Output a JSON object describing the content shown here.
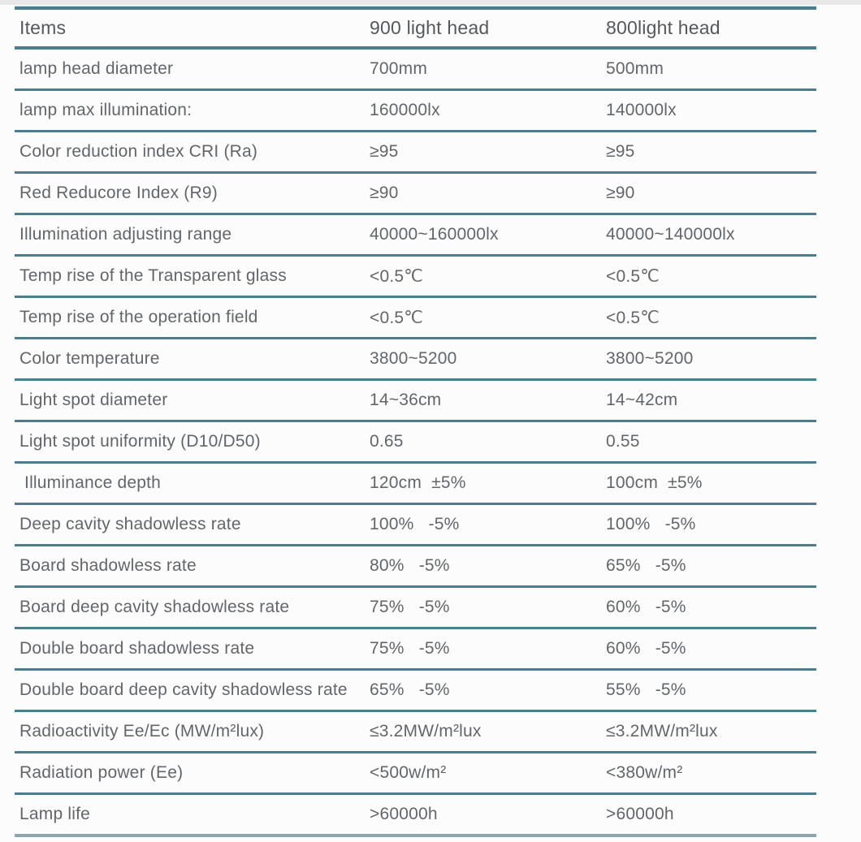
{
  "colors": {
    "page_bg": "#fcfcfc",
    "top_strip": "#e8e8e8",
    "line_teal": "#4b7d8d",
    "line_halo": "#d3e6ec",
    "line_bottom": "#8ca6b0",
    "header_text": "#55585b",
    "cell_text": "#636669"
  },
  "table": {
    "headers": [
      "Items",
      "900 light head",
      "800light head"
    ],
    "rows": [
      {
        "item": "lamp head diameter",
        "v900": "700mm",
        "v800": "500mm"
      },
      {
        "item": "lamp max illumination:",
        "v900": "160000lx",
        "v800": "140000lx"
      },
      {
        "item": "Color reduction index CRI (Ra)",
        "v900": "≥95",
        "v800": "≥95"
      },
      {
        "item": "Red Reducore Index (R9)",
        "v900": "≥90",
        "v800": "≥90"
      },
      {
        "item": "Illumination adjusting range",
        "v900": "40000~160000lx",
        "v800": "40000~140000lx"
      },
      {
        "item": "Temp rise of the Transparent glass",
        "v900": "<0.5℃",
        "v800": "<0.5℃"
      },
      {
        "item": "Temp rise of the operation field",
        "v900": "<0.5℃",
        "v800": "<0.5℃"
      },
      {
        "item": "Color temperature",
        "v900": "3800~5200",
        "v800": "3800~5200"
      },
      {
        "item": "Light spot diameter",
        "v900": "14~36cm",
        "v800": "14~42cm"
      },
      {
        "item": "Light spot uniformity (D10/D50)",
        "v900": "0.65",
        "v800": "0.55"
      },
      {
        "item": " Illuminance depth",
        "v900": "120cm  ±5%",
        "v800": "100cm  ±5%"
      },
      {
        "item": "Deep cavity shadowless rate",
        "v900": "100%   -5%",
        "v800": "100%   -5%"
      },
      {
        "item": "Board shadowless rate",
        "v900": "80%   -5%",
        "v800": "65%   -5%"
      },
      {
        "item": "Board deep cavity shadowless rate",
        "v900": "75%   -5%",
        "v800": "60%   -5%"
      },
      {
        "item": "Double board shadowless rate",
        "v900": "75%   -5%",
        "v800": "60%   -5%"
      },
      {
        "item": "Double board deep cavity shadowless rate",
        "v900": "65%   -5%",
        "v800": "55%   -5%",
        "overlap": true
      },
      {
        "item": "Radioactivity Ee/Ec (MW/m²lux)",
        "v900": "≤3.2MW/m²lux",
        "v800": "≤3.2MW/m²lux"
      },
      {
        "item": "Radiation power (Ee)",
        "v900": "<500w/m²",
        "v800": "<380w/m²"
      },
      {
        "item": "Lamp life",
        "v900": ">60000h",
        "v800": ">60000h"
      }
    ]
  }
}
